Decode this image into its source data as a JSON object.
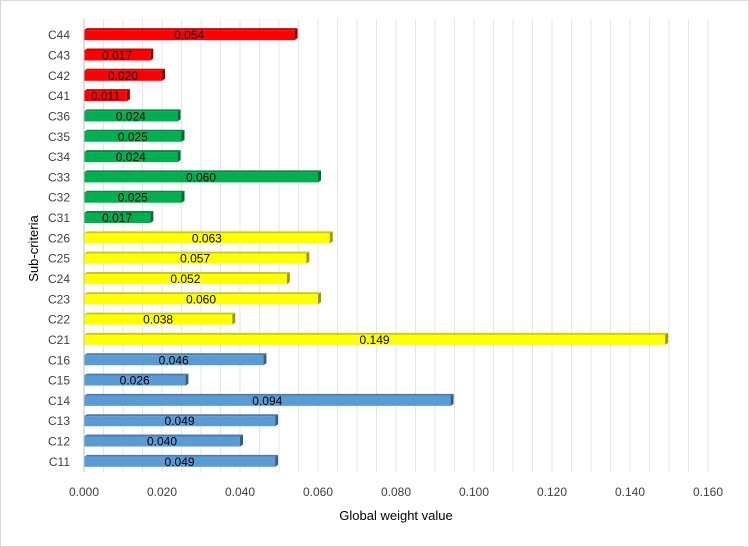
{
  "chart_data": {
    "type": "bar",
    "orientation": "horizontal",
    "title": "",
    "xlabel": "Global weight value",
    "ylabel": "Sub-criteria",
    "xlim": [
      0,
      0.16
    ],
    "x_ticks": [
      "0.000",
      "0.020",
      "0.040",
      "0.060",
      "0.080",
      "0.100",
      "0.120",
      "0.140",
      "0.160"
    ],
    "x_tick_values": [
      0,
      0.02,
      0.04,
      0.06,
      0.08,
      0.1,
      0.12,
      0.14,
      0.16
    ],
    "grid": "vertical",
    "legend": "none",
    "categories": [
      "C11",
      "C12",
      "C13",
      "C14",
      "C15",
      "C16",
      "C21",
      "C22",
      "C23",
      "C24",
      "C25",
      "C26",
      "C31",
      "C32",
      "C33",
      "C34",
      "C35",
      "C36",
      "C41",
      "C42",
      "C43",
      "C44"
    ],
    "values": [
      0.049,
      0.04,
      0.049,
      0.094,
      0.026,
      0.046,
      0.149,
      0.038,
      0.06,
      0.052,
      0.057,
      0.063,
      0.017,
      0.025,
      0.06,
      0.024,
      0.025,
      0.024,
      0.011,
      0.02,
      0.017,
      0.054
    ],
    "labels": [
      "0.049",
      "0.040",
      "0.049",
      "0.094",
      "0.026",
      "0.046",
      "0.149",
      "0.038",
      "0.060",
      "0.052",
      "0.057",
      "0.063",
      "0.017",
      "0.025",
      "0.060",
      "0.024",
      "0.025",
      "0.024",
      "0.011",
      "0.020",
      "0.017",
      "0.054"
    ],
    "bar_colors": [
      "#5b9bd5",
      "#5b9bd5",
      "#5b9bd5",
      "#5b9bd5",
      "#5b9bd5",
      "#5b9bd5",
      "#ffff00",
      "#ffff00",
      "#ffff00",
      "#ffff00",
      "#ffff00",
      "#ffff00",
      "#00b050",
      "#00b050",
      "#00b050",
      "#00b050",
      "#00b050",
      "#00b050",
      "#ff0000",
      "#ff0000",
      "#ff0000",
      "#ff0000"
    ]
  }
}
